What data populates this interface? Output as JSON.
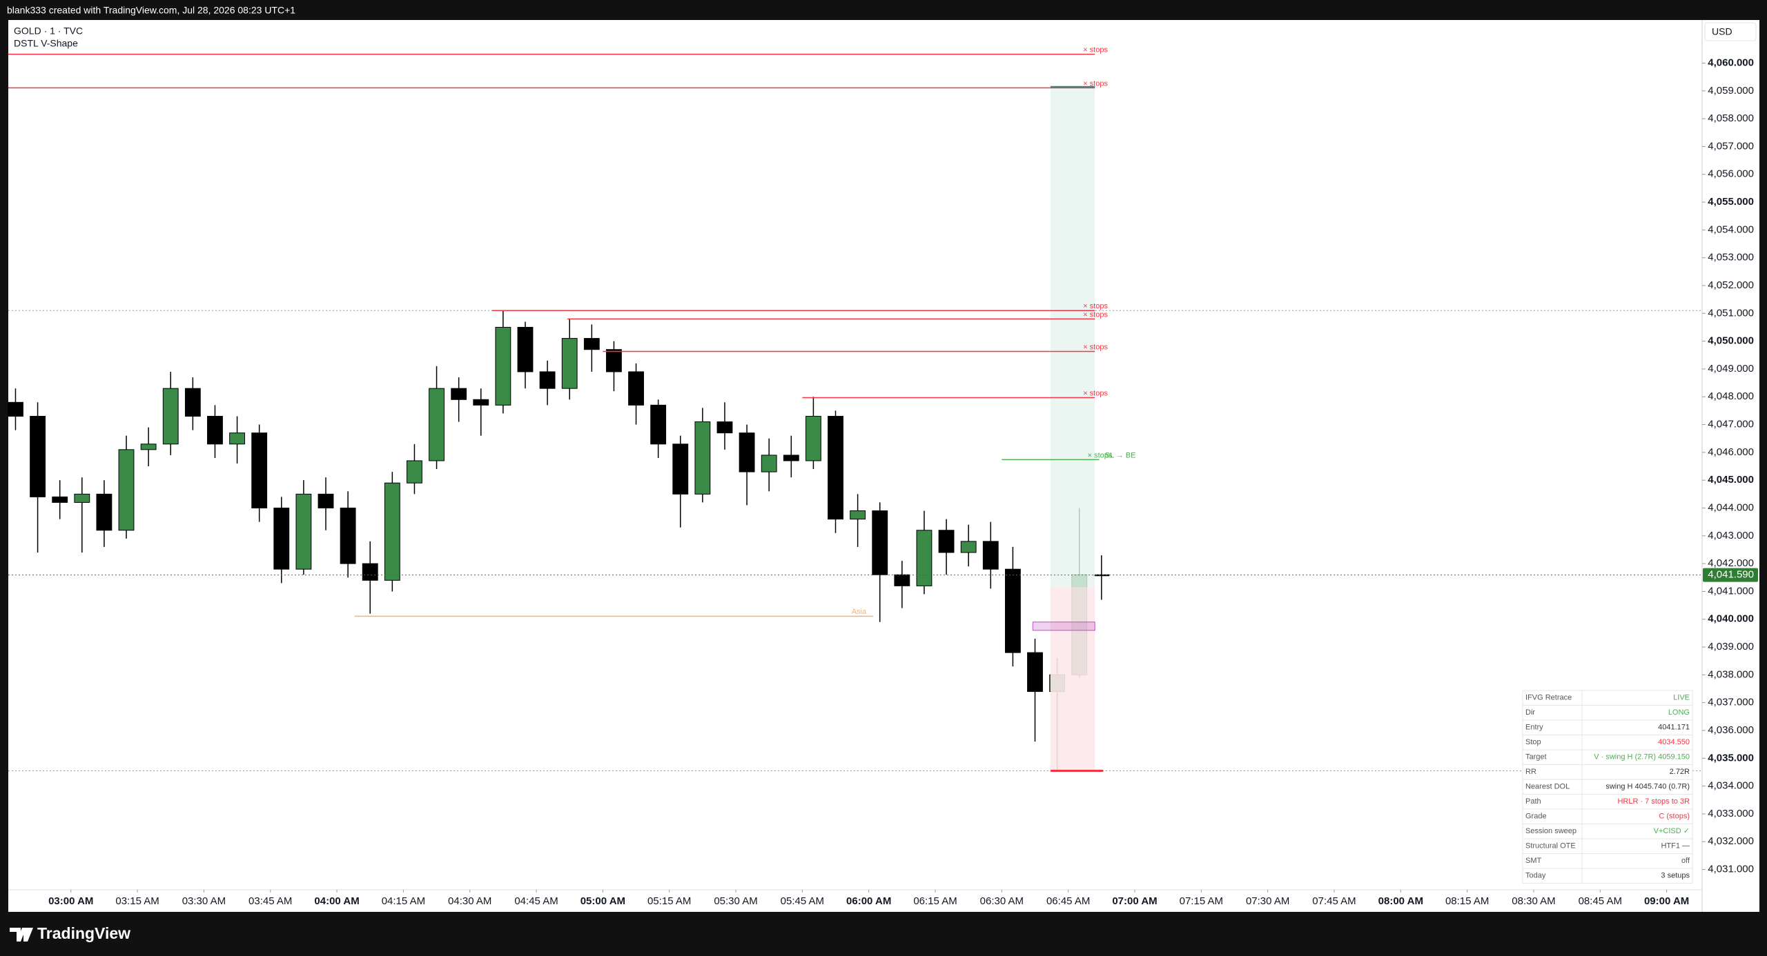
{
  "header": {
    "credit": "blank333 created with TradingView.com, Jul 28, 2026 08:23 UTC+1",
    "symbol": "GOLD · 1 · TVC",
    "indicator": "DSTL V-Shape",
    "currency": "USD",
    "brand": "TradingView"
  },
  "chart_data": {
    "type": "candlestick",
    "x": [
      "02:45 AM",
      "02:50 AM",
      "02:55 AM",
      "03:00 AM",
      "03:05 AM",
      "03:10 AM",
      "03:15 AM",
      "03:20 AM",
      "03:25 AM",
      "03:30 AM",
      "03:35 AM",
      "03:40 AM",
      "03:45 AM",
      "03:50 AM",
      "03:55 AM",
      "04:00 AM",
      "04:05 AM",
      "04:10 AM",
      "04:15 AM",
      "04:20 AM",
      "04:25 AM",
      "04:30 AM",
      "04:35 AM",
      "04:40 AM",
      "04:45 AM",
      "04:50 AM",
      "04:55 AM",
      "05:00 AM",
      "05:05 AM",
      "05:10 AM",
      "05:15 AM",
      "05:20 AM",
      "05:25 AM",
      "05:30 AM",
      "05:35 AM",
      "05:40 AM",
      "05:45 AM",
      "05:50 AM",
      "05:55 AM",
      "06:00 AM",
      "06:05 AM",
      "06:10 AM",
      "06:15 AM",
      "06:20 AM",
      "06:25 AM",
      "06:30 AM",
      "06:35 AM",
      "06:40 AM",
      "06:45 AM",
      "06:50 AM"
    ],
    "open": [
      4047.8,
      4047.3,
      4044.4,
      4044.2,
      4044.5,
      4043.2,
      4046.1,
      4046.3,
      4048.3,
      4047.3,
      4046.3,
      4046.7,
      4044.0,
      4041.8,
      4044.5,
      4044.0,
      4042.0,
      4041.4,
      4044.9,
      4045.7,
      4048.3,
      4047.9,
      4047.7,
      4050.5,
      4048.9,
      4048.3,
      4050.1,
      4049.7,
      4048.9,
      4047.7,
      4046.3,
      4044.5,
      4047.1,
      4046.7,
      4045.3,
      4045.9,
      4045.7,
      4047.3,
      4043.6,
      4043.9,
      4041.6,
      4041.2,
      4043.2,
      4042.4,
      4042.8,
      4041.8,
      4038.8,
      4037.4,
      4038.0,
      4041.6
    ],
    "high": [
      4048.3,
      4047.8,
      4045.0,
      4045.1,
      4045.0,
      4046.6,
      4046.9,
      4048.9,
      4048.7,
      4047.7,
      4047.3,
      4047.0,
      4044.4,
      4045.0,
      4045.1,
      4044.6,
      4042.8,
      4045.3,
      4046.3,
      4049.1,
      4048.7,
      4048.3,
      4051.1,
      4050.7,
      4049.3,
      4050.8,
      4050.6,
      4050.0,
      4049.2,
      4047.9,
      4046.6,
      4047.6,
      4047.8,
      4047.0,
      4046.5,
      4046.6,
      4048.0,
      4047.5,
      4044.5,
      4044.2,
      4042.1,
      4043.9,
      4043.6,
      4043.4,
      4043.5,
      4042.6,
      4039.3,
      4038.6,
      4044.0,
      4042.3
    ],
    "low": [
      4046.8,
      4042.4,
      4043.6,
      4042.4,
      4042.6,
      4042.9,
      4045.5,
      4045.9,
      4046.8,
      4045.8,
      4045.6,
      4043.5,
      4041.3,
      4041.6,
      4043.2,
      4041.5,
      4040.2,
      4041.0,
      4044.5,
      4045.4,
      4047.1,
      4046.6,
      4047.4,
      4048.3,
      4047.7,
      4047.9,
      4048.9,
      4048.2,
      4047.0,
      4045.8,
      4043.3,
      4044.2,
      4046.1,
      4044.1,
      4044.6,
      4045.1,
      4045.4,
      4043.1,
      4042.6,
      4039.9,
      4040.4,
      4040.9,
      4041.6,
      4041.9,
      4041.1,
      4038.3,
      4035.6,
      4034.55,
      4037.9,
      4040.7
    ],
    "close": [
      4047.3,
      4044.4,
      4044.2,
      4044.5,
      4043.2,
      4046.1,
      4046.3,
      4048.3,
      4047.3,
      4046.3,
      4046.7,
      4044.0,
      4041.8,
      4044.5,
      4044.0,
      4042.0,
      4041.4,
      4044.9,
      4045.7,
      4048.3,
      4047.9,
      4047.7,
      4050.5,
      4048.9,
      4048.3,
      4050.1,
      4049.7,
      4048.9,
      4047.7,
      4046.3,
      4044.5,
      4047.1,
      4046.7,
      4045.3,
      4045.9,
      4045.7,
      4047.3,
      4043.6,
      4043.9,
      4041.6,
      4041.2,
      4043.2,
      4042.4,
      4042.8,
      4041.8,
      4038.8,
      4037.4,
      4038.0,
      4041.6,
      4041.59
    ],
    "up_color": "#3b8a47",
    "down_color": "#000000",
    "xlim": [
      "02:44 AM",
      "09:08 AM"
    ],
    "xticks": [
      "03:00 AM",
      "03:15 AM",
      "03:30 AM",
      "03:45 AM",
      "04:00 AM",
      "04:15 AM",
      "04:30 AM",
      "04:45 AM",
      "05:00 AM",
      "05:15 AM",
      "05:30 AM",
      "05:45 AM",
      "06:00 AM",
      "06:15 AM",
      "06:30 AM",
      "06:45 AM",
      "07:00 AM",
      "07:15 AM",
      "07:30 AM",
      "07:45 AM",
      "08:00 AM",
      "08:15 AM",
      "08:30 AM",
      "08:45 AM",
      "09:00 AM"
    ],
    "ylim": [
      4030.27,
      4061.55
    ],
    "yticks": [
      {
        "value": 4031,
        "label": "4,031.000"
      },
      {
        "value": 4032,
        "label": "4,032.000"
      },
      {
        "value": 4033,
        "label": "4,033.000"
      },
      {
        "value": 4034,
        "label": "4,034.000"
      },
      {
        "value": 4035,
        "label": "4,035.000"
      },
      {
        "value": 4036,
        "label": "4,036.000"
      },
      {
        "value": 4037,
        "label": "4,037.000"
      },
      {
        "value": 4038,
        "label": "4,038.000"
      },
      {
        "value": 4039,
        "label": "4,039.000"
      },
      {
        "value": 4040,
        "label": "4,040.000"
      },
      {
        "value": 4041,
        "label": "4,041.000"
      },
      {
        "value": 4042,
        "label": "4,042.000"
      },
      {
        "value": 4043,
        "label": "4,043.000"
      },
      {
        "value": 4044,
        "label": "4,044.000"
      },
      {
        "value": 4045,
        "label": "4,045.000"
      },
      {
        "value": 4046,
        "label": "4,046.000"
      },
      {
        "value": 4047,
        "label": "4,047.000"
      },
      {
        "value": 4048,
        "label": "4,048.000"
      },
      {
        "value": 4049,
        "label": "4,049.000"
      },
      {
        "value": 4050,
        "label": "4,050.000"
      },
      {
        "value": 4051,
        "label": "4,051.000"
      },
      {
        "value": 4052,
        "label": "4,052.000"
      },
      {
        "value": 4053,
        "label": "4,053.000"
      },
      {
        "value": 4054,
        "label": "4,054.000"
      },
      {
        "value": 4055,
        "label": "4,055.000"
      },
      {
        "value": 4056,
        "label": "4,056.000"
      },
      {
        "value": 4057,
        "label": "4,057.000"
      },
      {
        "value": 4058,
        "label": "4,058.000"
      },
      {
        "value": 4059,
        "label": "4,059.000"
      },
      {
        "value": 4060,
        "label": "4,060.000"
      }
    ],
    "last_price": {
      "value": 4041.59,
      "label": "4,041.590",
      "color": "#2e7d32"
    },
    "dotted_levels": [
      4051.1,
      4034.55
    ],
    "levels": [
      {
        "price": 4060.32,
        "from": "02:44 AM",
        "to": "06:51 AM",
        "label": "× stops",
        "color": "#f23645"
      },
      {
        "price": 4059.11,
        "from": "02:44 AM",
        "to": "06:51 AM",
        "label": "× stops",
        "color": "#f23645"
      },
      {
        "price": 4051.1,
        "from": "04:35 AM",
        "to": "06:51 AM",
        "label": "× stops",
        "color": "#f23645"
      },
      {
        "price": 4050.8,
        "from": "04:52 AM",
        "to": "06:51 AM",
        "label": "× stops",
        "color": "#f23645"
      },
      {
        "price": 4049.63,
        "from": "05:00 AM",
        "to": "06:51 AM",
        "label": "× stops",
        "color": "#f23645"
      },
      {
        "price": 4047.97,
        "from": "05:45 AM",
        "to": "06:51 AM",
        "label": "× stops",
        "color": "#f23645"
      },
      {
        "price": 4045.74,
        "from": "06:30 AM",
        "to": "06:52 AM",
        "label": "× stops",
        "note": "SL → BE",
        "color": "#4caf50"
      },
      {
        "price": 4040.11,
        "from": "04:04 AM",
        "to": "06:01 AM",
        "label": "Asia",
        "color": "#f5b26b"
      }
    ],
    "position": {
      "start": "06:41 AM",
      "end": "06:47 AM",
      "entry": 4041.17,
      "target": 4059.15,
      "stop": 4034.55
    },
    "fvg": {
      "start": "06:37 AM",
      "end": "06:47 AM",
      "top": 4039.9,
      "bottom": 4039.6,
      "color": "#c04cc8"
    }
  },
  "info_table": {
    "rows": [
      {
        "label": "IFVG Retrace",
        "value": "LIVE",
        "color": "#4caf50"
      },
      {
        "label": "Dir",
        "value": "LONG",
        "color": "#4caf50"
      },
      {
        "label": "Entry",
        "value": "4041.171",
        "color": "#333333"
      },
      {
        "label": "Stop",
        "value": "4034.550",
        "color": "#f23645"
      },
      {
        "label": "Target",
        "value": "V · swing H (2.7R)  4059.150",
        "color": "#4caf50"
      },
      {
        "label": "RR",
        "value": "2.72R",
        "color": "#333333"
      },
      {
        "label": "Nearest DOL",
        "value": "swing H  4045.740 (0.7R)",
        "color": "#333333"
      },
      {
        "label": "Path",
        "value": "HRLR · 7 stops to 3R",
        "color": "#f23645"
      },
      {
        "label": "Grade",
        "value": "C (stops)",
        "color": "#f23645"
      },
      {
        "label": "Session sweep",
        "value": "V+CISD ✓",
        "color": "#4caf50"
      },
      {
        "label": "Structural OTE",
        "value": "HTF1 —",
        "color": "#555555"
      },
      {
        "label": "SMT",
        "value": "off",
        "color": "#555555"
      },
      {
        "label": "Today",
        "value": "3 setups",
        "color": "#333333"
      }
    ]
  }
}
